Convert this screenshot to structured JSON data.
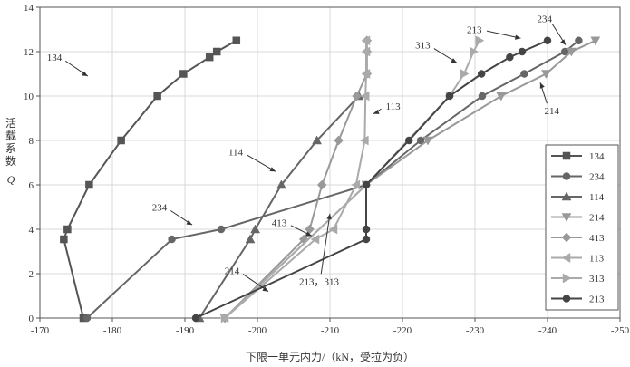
{
  "chart_data": {
    "type": "line",
    "xlabel": "下限一单元内力/（kN，受拉为负）",
    "ylabel": "活载系数",
    "ylabel_symbol": "Q",
    "xlim": [
      -170,
      -250
    ],
    "ylim": [
      0,
      14
    ],
    "xticks": [
      -170,
      -180,
      -190,
      -200,
      -210,
      -220,
      -230,
      -240,
      -250
    ],
    "yticks": [
      0,
      2,
      4,
      6,
      8,
      10,
      12,
      14
    ],
    "grid": true,
    "legend_position": "right",
    "series": [
      {
        "name": "134",
        "color": "#555555",
        "marker": "square",
        "x": [
          -176.0,
          -173.3,
          -173.8,
          -176.8,
          -181.2,
          -186.2,
          -189.8,
          -193.4,
          -194.4,
          -197.1
        ],
        "y": [
          0,
          3.55,
          4.0,
          6.0,
          8.0,
          10.0,
          11.0,
          11.75,
          12.0,
          12.5
        ]
      },
      {
        "name": "234",
        "color": "#666666",
        "marker": "circle",
        "x": [
          -176.5,
          -188.2,
          -195.0,
          -215.0,
          -222.5,
          -231.0,
          -236.8,
          -242.4,
          -244.3
        ],
        "y": [
          0,
          3.55,
          4.0,
          6.0,
          8.0,
          10.0,
          11.0,
          12.0,
          12.5
        ]
      },
      {
        "name": "114",
        "color": "#666666",
        "marker": "triangle-up",
        "x": [
          -192.0,
          -199.0,
          -199.7,
          -203.3,
          -208.2,
          -214.0
        ],
        "y": [
          0,
          3.55,
          4.0,
          6.0,
          8.0,
          10.0
        ]
      },
      {
        "name": "214",
        "color": "#999999",
        "marker": "triangle-down",
        "x": [
          -195.5,
          -215.0,
          -223.5,
          -233.6,
          -239.8,
          -243.3,
          -246.6
        ],
        "y": [
          0,
          6.0,
          8.0,
          10.0,
          11.0,
          12.0,
          12.5
        ]
      },
      {
        "name": "413",
        "color": "#999999",
        "marker": "diamond",
        "x": [
          -195.5,
          -206.4,
          -207.2,
          -208.9,
          -211.2,
          -213.7,
          -215.1,
          -215.1,
          -215.1
        ],
        "y": [
          0,
          3.55,
          4.0,
          6.0,
          8.0,
          10.0,
          11.0,
          12.0,
          12.5
        ]
      },
      {
        "name": "113",
        "color": "#aaaaaa",
        "marker": "triangle-left",
        "x": [
          -195.5,
          -208.0,
          -210.5,
          -213.6,
          -214.8,
          -214.9,
          -215.0,
          -215.0,
          -215.0
        ],
        "y": [
          0,
          3.55,
          4.0,
          6.0,
          8.0,
          10.0,
          11.0,
          12.0,
          12.5
        ]
      },
      {
        "name": "313",
        "color": "#aaaaaa",
        "marker": "triangle-right",
        "x": [
          -195.5,
          -215.0,
          -226.5,
          -228.5,
          -229.8,
          -230.6
        ],
        "y": [
          0,
          6.0,
          10.0,
          11.0,
          12.0,
          12.5
        ]
      },
      {
        "name": "213",
        "color": "#444444",
        "marker": "circle",
        "x": [
          -191.5,
          -215.0,
          -215.0,
          -215.0,
          -220.9,
          -226.5,
          -230.9,
          -234.8,
          -236.5,
          -240.0
        ],
        "y": [
          0,
          3.55,
          4.0,
          6.0,
          8.0,
          10.0,
          11.0,
          11.75,
          12.0,
          12.5
        ]
      }
    ],
    "annotations": [
      {
        "text": "134",
        "label_at": [
          -172.0,
          11.75
        ],
        "arrow_to": [
          -176.6,
          10.9
        ]
      },
      {
        "text": "234",
        "label_at": [
          -186.5,
          5.0
        ],
        "arrow_to": [
          -191.0,
          4.2
        ]
      },
      {
        "text": "114",
        "label_at": [
          -197.0,
          7.5
        ],
        "arrow_to": [
          -202.5,
          6.6
        ]
      },
      {
        "text": "413",
        "label_at": [
          -203.0,
          4.3
        ],
        "arrow_to": [
          -207.5,
          3.7
        ]
      },
      {
        "text": "214",
        "label_at": [
          -196.5,
          2.15
        ],
        "arrow_to": [
          -201.5,
          1.2
        ]
      },
      {
        "text": "113",
        "label_at": [
          -218.7,
          9.55
        ],
        "arrow_to": [
          -216.0,
          9.2
        ]
      },
      {
        "text": "313",
        "label_at": [
          -222.8,
          12.3
        ],
        "arrow_to": [
          -227.5,
          11.5
        ]
      },
      {
        "text": "213",
        "label_at": [
          -229.9,
          13.0
        ],
        "arrow_to": [
          -236.3,
          12.6
        ]
      },
      {
        "text": "234",
        "label_at": [
          -239.6,
          13.5
        ],
        "arrow_to": [
          -242.5,
          12.3
        ]
      },
      {
        "text": "214",
        "label_at": [
          -240.6,
          9.35
        ],
        "arrow_to": [
          -239.0,
          10.6
        ]
      },
      {
        "text": "213，313",
        "label_at": [
          -208.5,
          1.65
        ],
        "arrow_to": [
          -210.0,
          4.7
        ]
      }
    ]
  }
}
